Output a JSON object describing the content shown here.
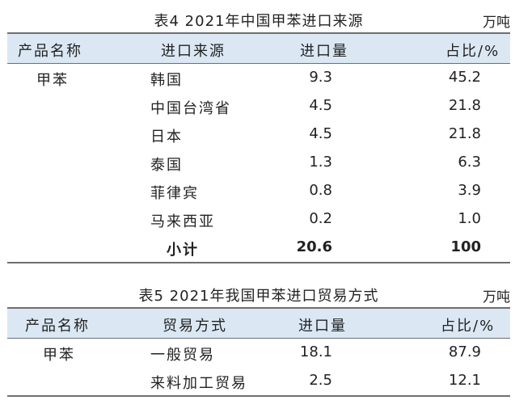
{
  "table4": {
    "title": "表4 2021年中国甲苯进口来源",
    "unit": "万吨",
    "headers": {
      "product": "产品名称",
      "source": "进口来源",
      "quantity": "进口量",
      "share": "占比/%"
    },
    "product": "甲苯",
    "rows": [
      {
        "source": "韩国",
        "quantity": "9.3",
        "share": "45.2"
      },
      {
        "source": "中国台湾省",
        "quantity": "4.5",
        "share": "21.8"
      },
      {
        "source": "日本",
        "quantity": "4.5",
        "share": "21.8"
      },
      {
        "source": "泰国",
        "quantity": "1.3",
        "share": "6.3"
      },
      {
        "source": "菲律宾",
        "quantity": "0.8",
        "share": "3.9"
      },
      {
        "source": "马来西亚",
        "quantity": "0.2",
        "share": "1.0"
      }
    ],
    "subtotal": {
      "label": "小计",
      "quantity": "20.6",
      "share": "100"
    }
  },
  "table5": {
    "title": "表5 2021年我国甲苯进口贸易方式",
    "unit": "万吨",
    "headers": {
      "product": "产品名称",
      "mode": "贸易方式",
      "quantity": "进口量",
      "share": "占比/%"
    },
    "product": "甲苯",
    "rows": [
      {
        "mode": "一般贸易",
        "quantity": "18.1",
        "share": "87.9"
      },
      {
        "mode": "来料加工贸易",
        "quantity": "2.5",
        "share": "12.1"
      }
    ]
  }
}
